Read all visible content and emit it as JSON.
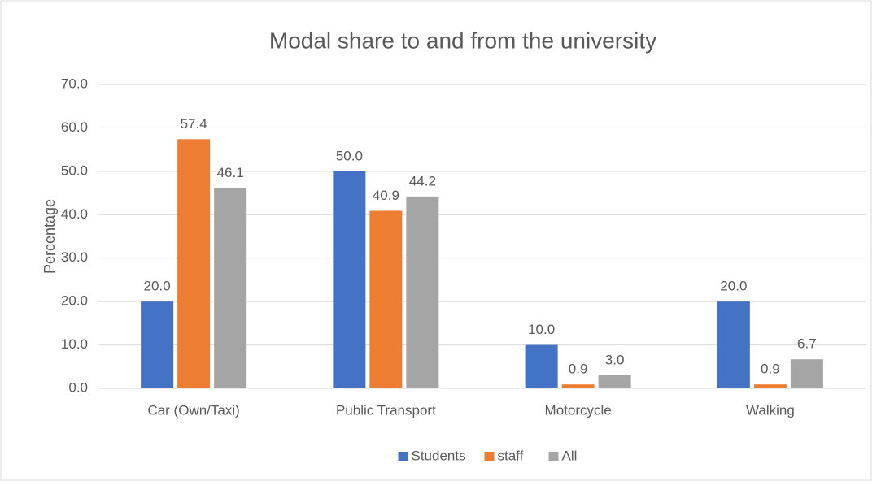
{
  "chart_data": {
    "type": "bar",
    "title": "Modal share to and from the university",
    "y_label": "Percentage",
    "categories": [
      "Car (Own/Taxi)",
      "Public Transport",
      "Motorcycle",
      "Walking"
    ],
    "series": [
      {
        "name": "Students",
        "color": "#4472c4",
        "values": [
          20,
          50,
          10,
          20
        ],
        "value_labels": [
          "20.0",
          "50.0",
          "10.0",
          "20.0"
        ]
      },
      {
        "name": "staff",
        "color": "#ed7d31",
        "values": [
          57.4,
          40.9,
          0.9,
          0.9
        ],
        "value_labels": [
          "57.4",
          "40.9",
          "0.9",
          "0.9"
        ]
      },
      {
        "name": "All",
        "color": "#a5a5a5",
        "values": [
          46.1,
          44.2,
          3,
          6.7
        ],
        "value_labels": [
          "46.1",
          "44.2",
          "3.0",
          "6.7"
        ]
      }
    ],
    "ylim": [
      0,
      70
    ],
    "yticks": [
      {
        "value": 0,
        "label": "0.0"
      },
      {
        "value": 10,
        "label": "10.0"
      },
      {
        "value": 20,
        "label": "20.0"
      },
      {
        "value": 30,
        "label": "30.0"
      },
      {
        "value": 40,
        "label": "40.0"
      },
      {
        "value": 50,
        "label": "50.0"
      },
      {
        "value": 60,
        "label": "60.0"
      },
      {
        "value": 70,
        "label": "70.0"
      }
    ],
    "grid": true,
    "legend": "bottom"
  }
}
